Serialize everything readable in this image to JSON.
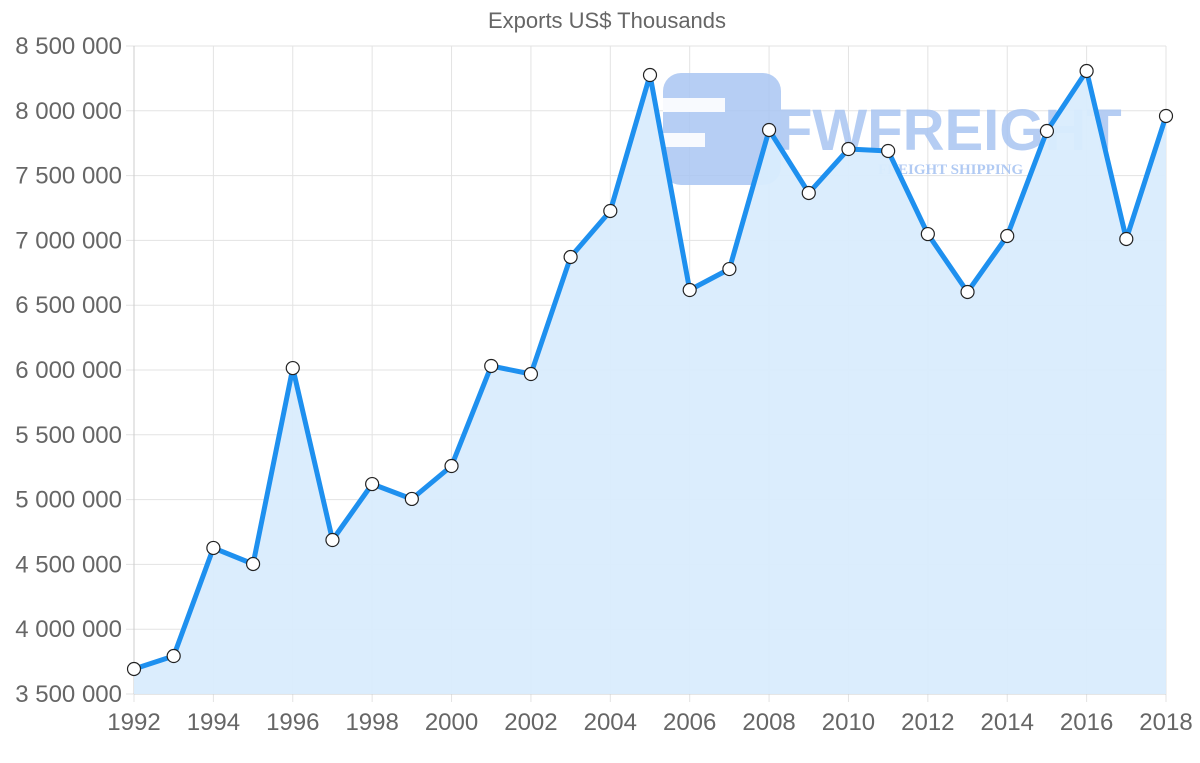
{
  "chart_data": {
    "type": "area",
    "title": "Exports US$ Thousands",
    "xlabel": "",
    "ylabel": "",
    "x": [
      1992,
      1993,
      1994,
      1995,
      1996,
      1997,
      1998,
      1999,
      2000,
      2001,
      2002,
      2003,
      2004,
      2005,
      2006,
      2007,
      2008,
      2009,
      2010,
      2011,
      2012,
      2013,
      2014,
      2015,
      2016,
      2017,
      2018
    ],
    "series": [
      {
        "name": "Exports US$ Thousands",
        "values": [
          3693000,
          3793000,
          4627000,
          4503000,
          6015000,
          4688000,
          5120000,
          5005000,
          5259000,
          6031000,
          5969000,
          6872000,
          7227000,
          8276000,
          6617000,
          6779000,
          7852000,
          7366000,
          7705000,
          7690000,
          7049000,
          6602000,
          7034000,
          7844000,
          8307000,
          7011000,
          7960000
        ]
      }
    ],
    "ylim": [
      3500000,
      8500000
    ],
    "xlim": [
      1992,
      2018
    ],
    "y_ticks": [
      "3 500 000",
      "4 000 000",
      "4 500 000",
      "5 000 000",
      "5 500 000",
      "6 000 000",
      "6 500 000",
      "7 000 000",
      "7 500 000",
      "8 000 000",
      "8 500 000"
    ],
    "x_ticks": [
      "1992",
      "1994",
      "1996",
      "1998",
      "2000",
      "2002",
      "2004",
      "2006",
      "2008",
      "2010",
      "2012",
      "2014",
      "2016",
      "2018"
    ],
    "grid": true,
    "legend": "none",
    "colors": {
      "line": "#1e90ef",
      "fill": "#d9ecfd",
      "grid": "#e3e3e3",
      "point_fill": "#ffffff",
      "point_stroke": "#222222"
    }
  },
  "watermark": {
    "brand": "FWFREIGHT",
    "tagline": "FREIGHT SHIPPING",
    "color": "#a9c5f2"
  }
}
